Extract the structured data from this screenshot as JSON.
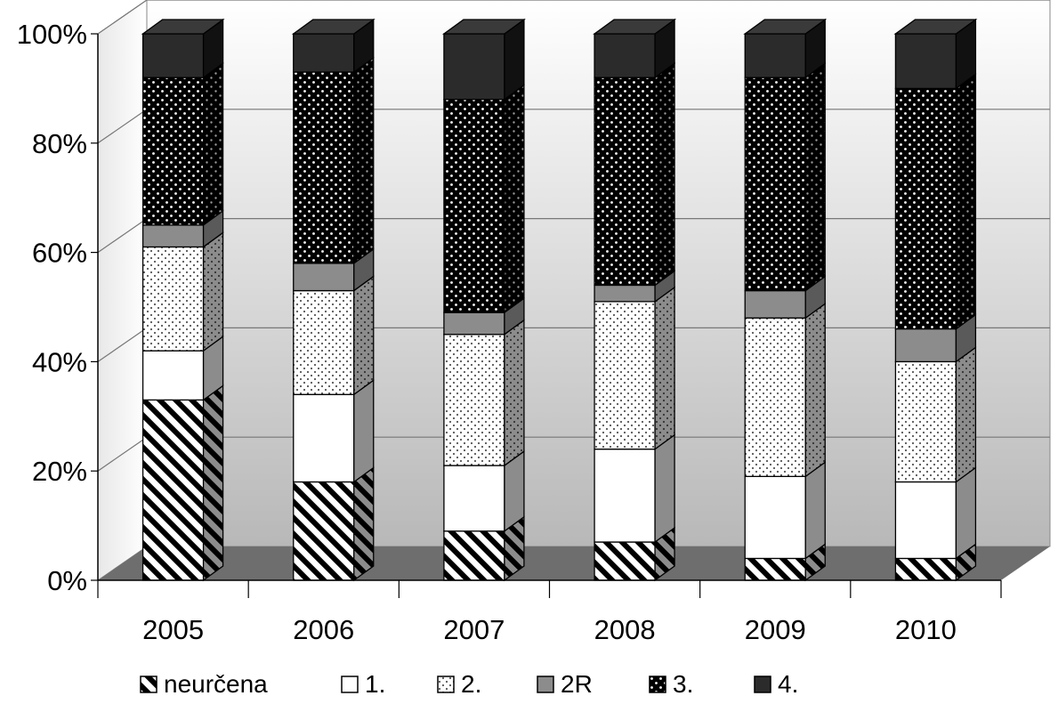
{
  "chart_data": {
    "type": "bar",
    "stacked": true,
    "percent": true,
    "three_d": true,
    "categories": [
      "2005",
      "2006",
      "2007",
      "2008",
      "2009",
      "2010"
    ],
    "series": [
      {
        "name": "neurčena",
        "pattern": "diagonal-hatch",
        "values": [
          33,
          18,
          9,
          7,
          4,
          4
        ]
      },
      {
        "name": "1.",
        "pattern": "solid-white",
        "values": [
          9,
          16,
          12,
          17,
          15,
          14
        ]
      },
      {
        "name": "2.",
        "pattern": "light-dots",
        "values": [
          19,
          19,
          24,
          27,
          29,
          22
        ]
      },
      {
        "name": "2R",
        "pattern": "solid-gray",
        "values": [
          4,
          5,
          4,
          3,
          5,
          6
        ]
      },
      {
        "name": "3.",
        "pattern": "dark-dots",
        "values": [
          27,
          35,
          39,
          38,
          39,
          44
        ]
      },
      {
        "name": "4.",
        "pattern": "solid-dark",
        "values": [
          8,
          7,
          12,
          8,
          8,
          10
        ]
      }
    ],
    "yticks": [
      "0%",
      "20%",
      "40%",
      "60%",
      "80%",
      "100%"
    ],
    "ylim": [
      0,
      100
    ],
    "grid": true,
    "legend": "bottom",
    "colors": {
      "white": "#ffffff",
      "gray": "#8c8c8c",
      "dark": "#2b2b2b",
      "floor": "#6e6e6e"
    }
  }
}
